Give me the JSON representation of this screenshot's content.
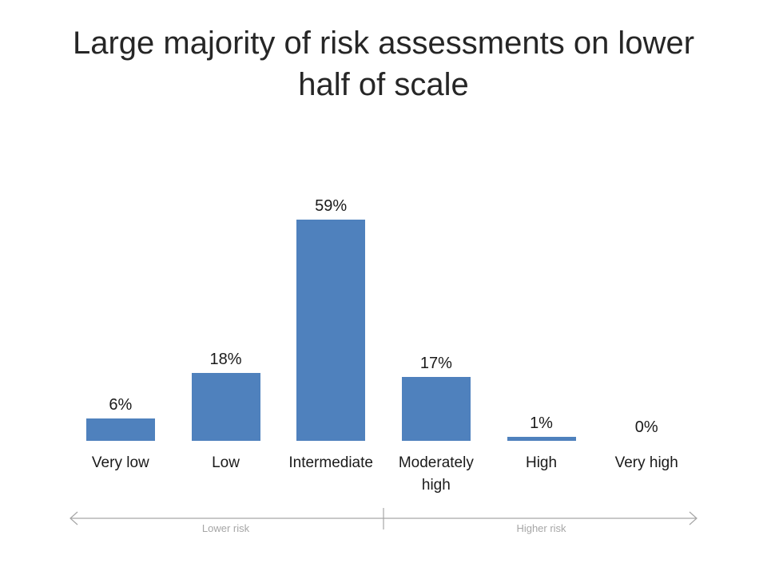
{
  "slide": {
    "title": "Large majority of risk assessments on lower half of scale"
  },
  "chart_data": {
    "type": "bar",
    "title": "Large majority of risk assessments on lower half of scale",
    "categories": [
      "Very low",
      "Low",
      "Intermediate",
      "Moderately high",
      "High",
      "Very high"
    ],
    "values": [
      6,
      18,
      59,
      17,
      1,
      0
    ],
    "value_labels": [
      "6%",
      "18%",
      "59%",
      "17%",
      "1%",
      "0%"
    ],
    "ylim": [
      0,
      60
    ],
    "grid": false,
    "data_labels": true,
    "bar_color": "#4F81BD",
    "axis": {
      "left_label": "Lower risk",
      "right_label": "Higher risk",
      "line_color": "#A6A6A6"
    }
  }
}
